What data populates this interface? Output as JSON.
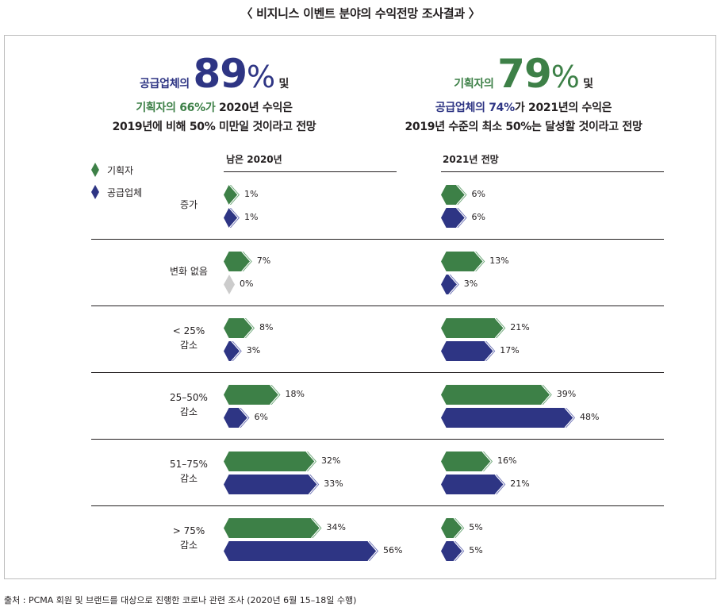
{
  "page_title": "〈 비지니스 이벤트 분야의 수익전망 조사결과 〉",
  "headline_left": {
    "subject": "공급업체의",
    "big_number": "89",
    "percent_sign": "%",
    "conj": "및",
    "line2_colored": "기획자의 66%가",
    "line2_rest": "2020년 수익은",
    "line3": "2019년에 비해 50% 미만일 것이라고 전망"
  },
  "headline_right": {
    "subject": "기획자의",
    "big_number": "79",
    "percent_sign": "%",
    "conj": "및",
    "line2_colored": "공급업체의 74%",
    "line2_rest": "가 2021년의 수익은",
    "line3": "2019년 수준의 최소 50%는 달성할 것이라고 전망"
  },
  "colors": {
    "planner": "#3d8047",
    "planner_tip": "#6aa675",
    "supplier": "#2e3584",
    "supplier_tip": "#6b70b5",
    "zero": "#cccccc"
  },
  "chart_data": {
    "type": "bar",
    "orientation": "horizontal",
    "legend": [
      "기획자",
      "공급업체"
    ],
    "categories": [
      "증가",
      "변화 없음",
      "< 25%\n감소",
      "25–50%\n감소",
      "51–75%\n감소",
      "> 75%\n감소"
    ],
    "category_lines": [
      [
        "증가"
      ],
      [
        "변화 없음"
      ],
      [
        "< 25%",
        "감소"
      ],
      [
        "25–50%",
        "감소"
      ],
      [
        "51–75%",
        "감소"
      ],
      [
        "> 75%",
        "감소"
      ]
    ],
    "panels": [
      {
        "title": "남은 2020년",
        "series": [
          {
            "name": "기획자",
            "values": [
              1,
              7,
              8,
              18,
              32,
              34
            ]
          },
          {
            "name": "공급업체",
            "values": [
              1,
              0,
              3,
              6,
              33,
              56
            ]
          }
        ]
      },
      {
        "title": "2021년 전망",
        "series": [
          {
            "name": "기획자",
            "values": [
              6,
              13,
              21,
              39,
              16,
              5
            ]
          },
          {
            "name": "공급업체",
            "values": [
              6,
              3,
              17,
              48,
              21,
              5
            ]
          }
        ]
      }
    ],
    "value_suffix": "%"
  },
  "source": "출처 : PCMA 회원 및 브랜드를 대상으로 진행한 코로나 관련 조사 (2020년 6월 15–18일 수행)"
}
